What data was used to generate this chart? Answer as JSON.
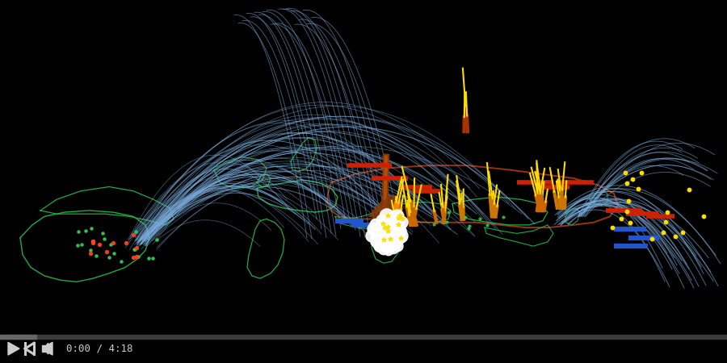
{
  "bg_color": "#000000",
  "blue_arc": "#7aaddd",
  "yellow": "#ffdd00",
  "orange": "#cc7700",
  "red_dash": "#cc2200",
  "white_exp": "#ffffff",
  "brown_exp": "#8b3a0a",
  "green_border": "#22aa44",
  "russia_border": "#993311",
  "blue_bar": "#2255cc",
  "ctrl_color": "#cccccc",
  "time_text": "0:00 / 4:18",
  "figsize": [
    9.0,
    4.5
  ],
  "dpi": 100
}
